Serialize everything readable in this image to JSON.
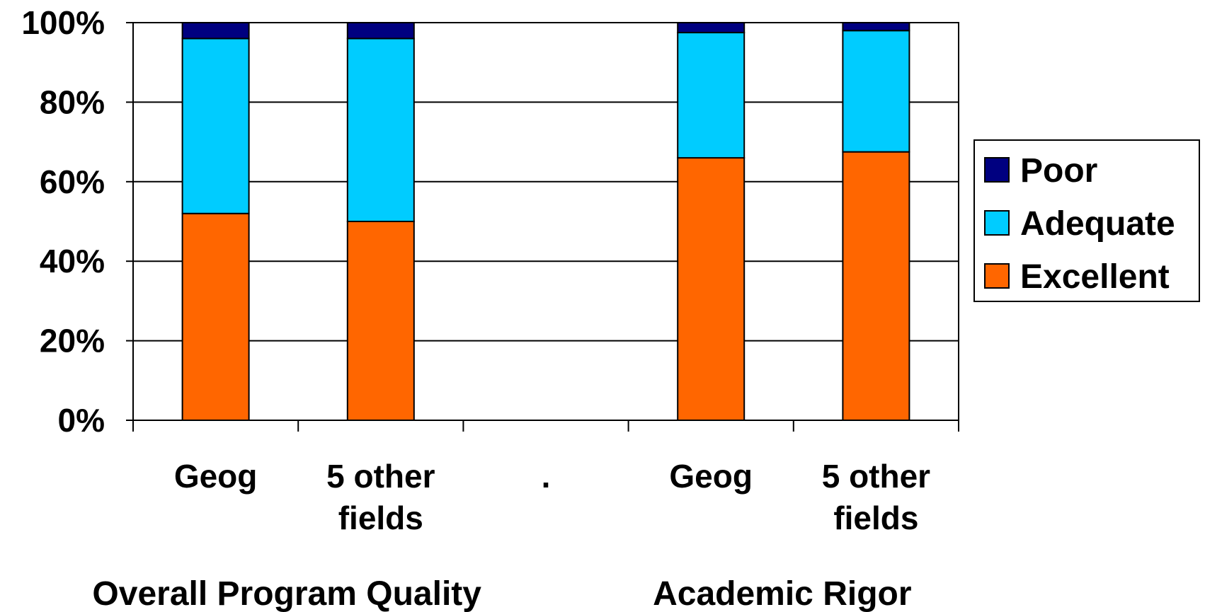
{
  "chart_data": {
    "type": "bar",
    "stacked": true,
    "categories": [
      {
        "lines": [
          "Geog"
        ]
      },
      {
        "lines": [
          "5 other",
          "fields"
        ]
      },
      {
        "lines": [
          "."
        ]
      },
      {
        "lines": [
          "Geog"
        ]
      },
      {
        "lines": [
          "5 other",
          "fields"
        ]
      }
    ],
    "groups": [
      {
        "label": "Overall Program Quality",
        "categories": [
          0,
          1
        ]
      },
      {
        "label": "Academic Rigor",
        "categories": [
          3,
          4
        ]
      }
    ],
    "series": [
      {
        "name": "Excellent",
        "color": "#FF6600",
        "values": [
          52,
          50,
          null,
          66,
          67.5
        ]
      },
      {
        "name": "Adequate",
        "color": "#00CCFF",
        "values": [
          44,
          46,
          null,
          31.5,
          30.5
        ]
      },
      {
        "name": "Poor",
        "color": "#000080",
        "values": [
          4,
          4,
          null,
          2.5,
          2
        ]
      }
    ],
    "y_ticks": [
      "0%",
      "20%",
      "40%",
      "60%",
      "80%",
      "100%"
    ],
    "ylim": [
      0,
      100
    ],
    "grid": true,
    "legend": {
      "position": "right",
      "order": [
        "Poor",
        "Adequate",
        "Excellent"
      ]
    }
  }
}
